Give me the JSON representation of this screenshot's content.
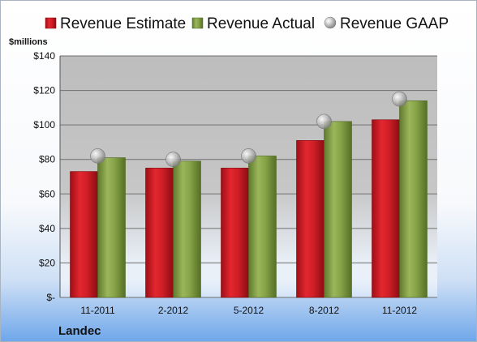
{
  "chart_data": {
    "type": "bar",
    "title": "",
    "ylabel": "$millions",
    "xlabel": "",
    "company": "Landec",
    "categories": [
      "11-2011",
      "2-2012",
      "5-2012",
      "8-2012",
      "11-2012"
    ],
    "series": [
      {
        "name": "Revenue Estimate",
        "kind": "bar",
        "color": "#d42027",
        "values": [
          73,
          75,
          75,
          91,
          103
        ]
      },
      {
        "name": "Revenue Actual",
        "kind": "bar",
        "color": "#8aa34a",
        "values": [
          81,
          79,
          82,
          102,
          114
        ]
      },
      {
        "name": "Revenue GAAP",
        "kind": "marker",
        "color": "#a9a9a9",
        "values": [
          82,
          80,
          82,
          102,
          115
        ]
      }
    ],
    "ylim": [
      0,
      140
    ],
    "yticks": [
      0,
      20,
      40,
      60,
      80,
      100,
      120,
      140
    ],
    "ytick_labels": [
      "$-",
      "$20",
      "$40",
      "$60",
      "$80",
      "$100",
      "$120",
      "$140"
    ],
    "grid": true,
    "legend_position": "top"
  }
}
